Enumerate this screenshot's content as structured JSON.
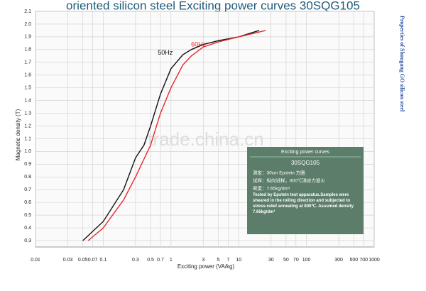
{
  "chart_data": {
    "type": "line",
    "title": "oriented silicon steel Exciting power curves 30SQG105",
    "side_text": "Properties of Shougang GO silicon steel",
    "x_label": "Exciting power (VA/kg)",
    "y_label": "Magnetic density (T)",
    "watermark": "trade.china.cn",
    "log_x": true,
    "grid": true,
    "xlim": [
      0.01,
      1000
    ],
    "ylim": [
      0.25,
      2.1
    ],
    "xticks": [
      0.01,
      0.03,
      0.05,
      0.07,
      0.1,
      0.3,
      0.5,
      0.7,
      1,
      3,
      5,
      7,
      10,
      30,
      50,
      70,
      100,
      300,
      500,
      700,
      1000
    ],
    "yticks": [
      0.3,
      0.4,
      0.5,
      0.6,
      0.7,
      0.8,
      0.9,
      {
        "value": 1,
        "label": "1.0"
      },
      1.1,
      1.2,
      1.3,
      1.4,
      1.5,
      1.6,
      1.7,
      1.8,
      1.9,
      {
        "value": 2,
        "label": "2.0"
      },
      2.1
    ],
    "series": [
      {
        "name": "50Hz",
        "color": "#111111",
        "x": [
          0.05,
          0.1,
          0.2,
          0.3,
          0.4,
          0.5,
          0.7,
          1,
          1.5,
          2,
          3,
          5,
          10,
          20
        ],
        "values": [
          0.3,
          0.45,
          0.7,
          0.95,
          1.05,
          1.2,
          1.45,
          1.65,
          1.76,
          1.8,
          1.84,
          1.87,
          1.9,
          1.95
        ]
      },
      {
        "name": "60Hz",
        "color": "#e8262a",
        "x": [
          0.06,
          0.1,
          0.2,
          0.3,
          0.5,
          0.7,
          1,
          1.5,
          2,
          3,
          5,
          10,
          25
        ],
        "values": [
          0.3,
          0.4,
          0.62,
          0.8,
          1.05,
          1.3,
          1.5,
          1.68,
          1.75,
          1.82,
          1.86,
          1.9,
          1.95
        ]
      }
    ],
    "info_box": {
      "title": "Exciting power curves",
      "grade": "30SQG105",
      "lines": [
        "测定：30cm Epstein 方圈",
        "试样：纵向试样，800℃消应力退火",
        "密度：7.65kg/dm³"
      ],
      "note": "Tested by Epstein test apparatus.Samples were sheared in the rolling direction and subjected to stress-relief annealing at 800℃. Assumed density 7.65kg/dm³"
    }
  }
}
